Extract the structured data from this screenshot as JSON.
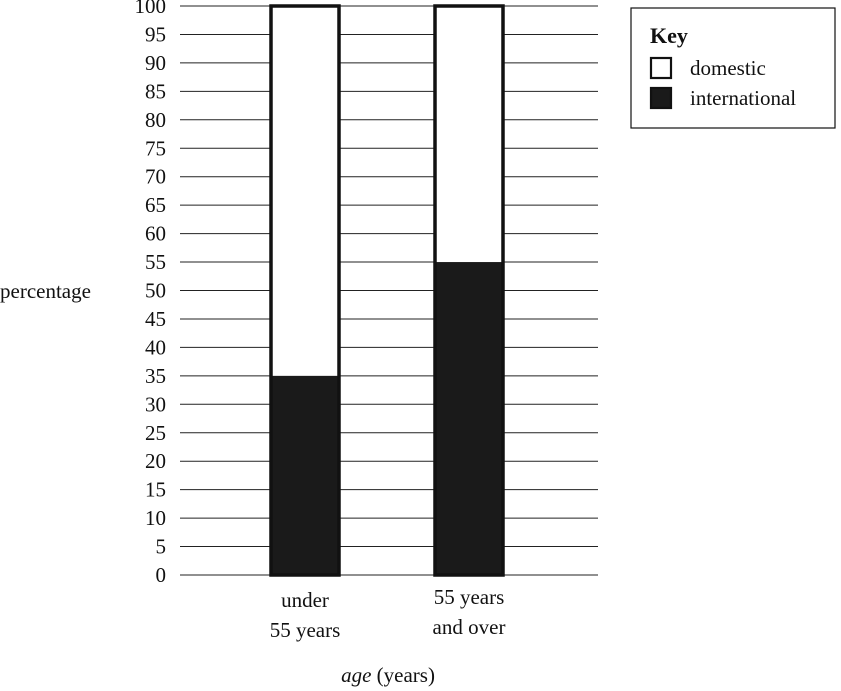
{
  "chart_data": {
    "type": "bar",
    "stacked": true,
    "percent": true,
    "categories": [
      [
        "under",
        "55 years"
      ],
      [
        "55 years",
        "and over"
      ]
    ],
    "series": [
      {
        "name": "international",
        "values": [
          35,
          55
        ],
        "color": "#1a1a1a"
      },
      {
        "name": "domestic",
        "values": [
          65,
          45
        ],
        "color": "#ffffff"
      }
    ],
    "ylabel": "percentage",
    "xlabel": {
      "italic": "age",
      "plain": " (years)"
    },
    "ylim": [
      0,
      100
    ],
    "yticks": [
      0,
      5,
      10,
      15,
      20,
      25,
      30,
      35,
      40,
      45,
      50,
      55,
      60,
      65,
      70,
      75,
      80,
      85,
      90,
      95,
      100
    ],
    "grid": true,
    "legend": {
      "title": "Key",
      "placement": "top-right",
      "entries": [
        {
          "label": "domestic",
          "color": "#ffffff"
        },
        {
          "label": "international",
          "color": "#1a1a1a"
        }
      ]
    }
  }
}
